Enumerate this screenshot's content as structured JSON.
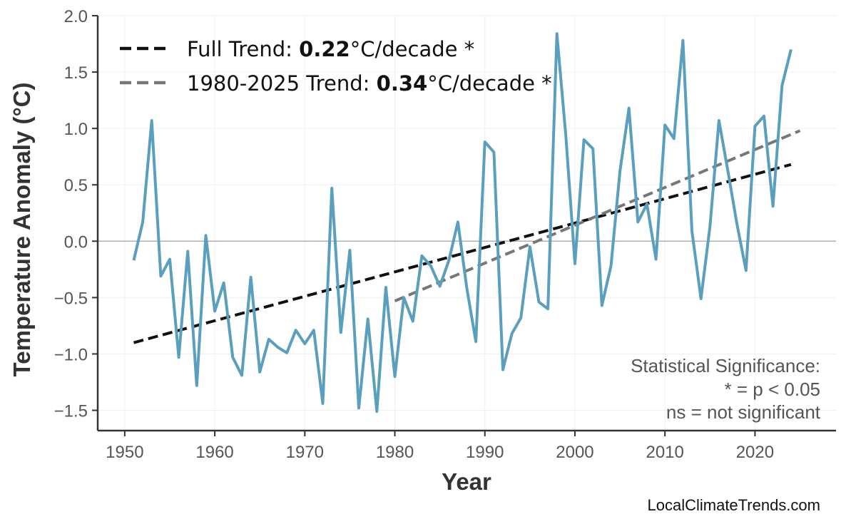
{
  "chart_data": {
    "type": "line",
    "xlabel": "Year",
    "ylabel": "Temperature Anomaly (°C)",
    "xlim": [
      1947,
      2029
    ],
    "ylim": [
      -1.68,
      2.0
    ],
    "x_ticks": [
      1950,
      1960,
      1970,
      1980,
      1990,
      2000,
      2010,
      2020
    ],
    "y_ticks": [
      {
        "value": -1.5,
        "label": "−1.5"
      },
      {
        "value": -1.0,
        "label": "−1.0"
      },
      {
        "value": -0.5,
        "label": "−0.5"
      },
      {
        "value": 0.0,
        "label": "0.0"
      },
      {
        "value": 0.5,
        "label": "0.5"
      },
      {
        "value": 1.0,
        "label": "1.0"
      },
      {
        "value": 1.5,
        "label": "1.5"
      },
      {
        "value": 2.0,
        "label": "2.0"
      }
    ],
    "grid": true,
    "zero_line": true,
    "series": [
      {
        "color": "#5a9fbd",
        "x": [
          1951,
          1952,
          1953,
          1954,
          1955,
          1956,
          1957,
          1958,
          1959,
          1960,
          1961,
          1962,
          1963,
          1964,
          1965,
          1966,
          1967,
          1968,
          1969,
          1970,
          1971,
          1972,
          1973,
          1974,
          1975,
          1976,
          1977,
          1978,
          1979,
          1980,
          1981,
          1982,
          1983,
          1984,
          1985,
          1986,
          1987,
          1988,
          1989,
          1990,
          1991,
          1992,
          1993,
          1994,
          1995,
          1996,
          1997,
          1998,
          1999,
          2000,
          2001,
          2002,
          2003,
          2004,
          2005,
          2006,
          2007,
          2008,
          2009,
          2010,
          2011,
          2012,
          2013,
          2014,
          2015,
          2016,
          2017,
          2018,
          2019,
          2020,
          2021,
          2022,
          2023,
          2024
        ],
        "y": [
          -0.17,
          0.17,
          1.07,
          -0.31,
          -0.16,
          -1.03,
          -0.09,
          -1.28,
          0.05,
          -0.62,
          -0.37,
          -1.03,
          -1.19,
          -0.32,
          -1.16,
          -0.87,
          -0.94,
          -0.99,
          -0.79,
          -0.91,
          -0.79,
          -1.44,
          0.47,
          -0.81,
          -0.08,
          -1.48,
          -0.69,
          -1.51,
          -0.41,
          -1.2,
          -0.5,
          -0.71,
          -0.13,
          -0.22,
          -0.4,
          -0.17,
          0.17,
          -0.42,
          -0.89,
          0.88,
          0.79,
          -1.14,
          -0.82,
          -0.68,
          -0.05,
          -0.54,
          -0.6,
          1.84,
          0.93,
          -0.2,
          0.9,
          0.82,
          -0.57,
          -0.22,
          0.62,
          1.18,
          0.17,
          0.33,
          -0.16,
          1.03,
          0.91,
          1.78,
          0.09,
          -0.51,
          0.13,
          1.07,
          0.62,
          0.15,
          -0.26,
          1.02,
          1.11,
          0.31,
          1.38,
          1.7
        ]
      }
    ],
    "trend_lines": [
      {
        "label_prefix": "Full Trend: ",
        "value": "0.22",
        "label_suffix": "°C/decade *",
        "x": [
          1951,
          2024
        ],
        "y": [
          -0.9,
          0.68
        ],
        "color": "#111111"
      },
      {
        "label_prefix": "1980-2025 Trend: ",
        "value": "0.34",
        "label_suffix": "°C/decade *",
        "x": [
          1980,
          2025
        ],
        "y": [
          -0.53,
          0.98
        ],
        "color": "#777777"
      }
    ],
    "legend_position": "top-left",
    "significance_note": [
      "Statistical Significance:",
      "* = p < 0.05",
      "ns = not significant"
    ],
    "credit": "LocalClimateTrends.com"
  }
}
